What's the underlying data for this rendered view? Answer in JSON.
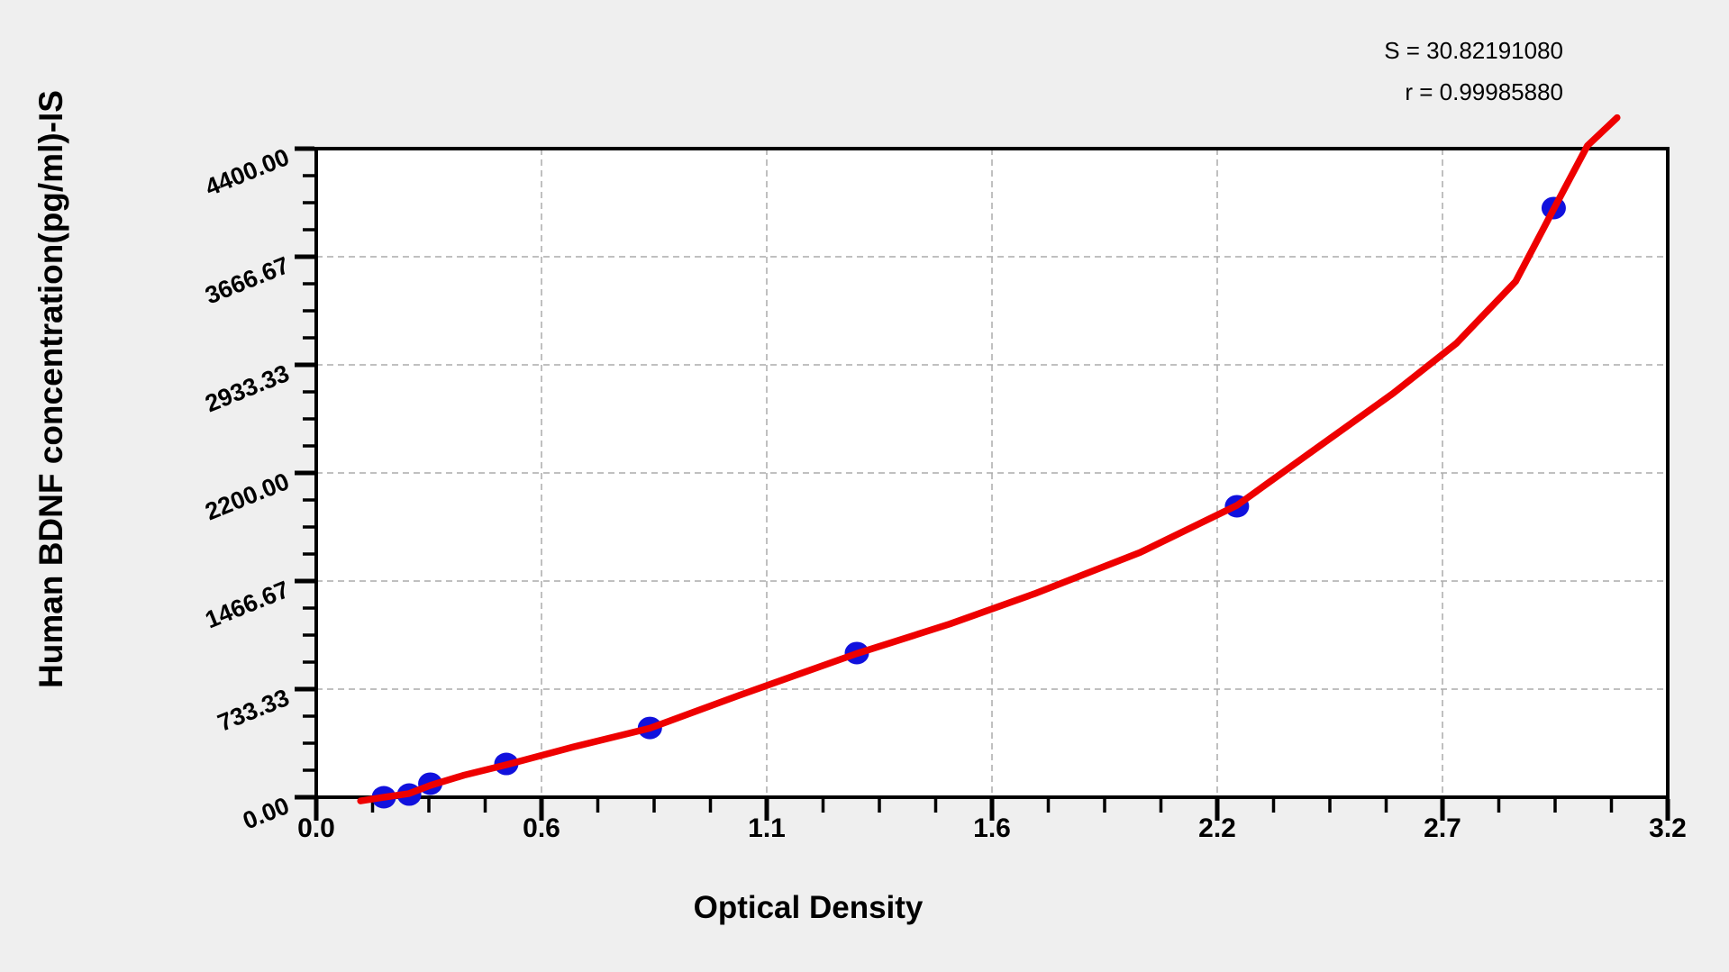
{
  "stats": {
    "s_label": "S = 30.82191080",
    "r_label": "r = 0.99985880"
  },
  "chart_data": {
    "type": "scatter",
    "title": "",
    "xlabel": "Optical Density",
    "ylabel": "Human BDNF concentration(pg/ml)-IS",
    "xlim": [
      0,
      3.2
    ],
    "ylim": [
      0,
      4400
    ],
    "x_tick_labels": [
      "0.0",
      "0.6",
      "1.1",
      "1.6",
      "2.2",
      "2.7",
      "3.2"
    ],
    "y_tick_labels": [
      "0.00",
      "733.33",
      "1466.67",
      "2200.00",
      "2933.33",
      "3666.67",
      "4400.00"
    ],
    "minor_ticks_per_interval": 3,
    "grid": "dashed-major",
    "legend": "none",
    "S": 30.8219108,
    "r": 0.9998588,
    "colors": {
      "point": "#1111dd",
      "curve": "#ee0000",
      "grid": "#ababab",
      "frame": "#000000",
      "plot_bg": "#ffffff",
      "page_bg": "#efefef"
    },
    "series": [
      {
        "name": "standard-points",
        "type": "scatter",
        "color": "#1111dd",
        "points": [
          [
            0.16,
            0
          ],
          [
            0.22,
            18
          ],
          [
            0.27,
            92
          ],
          [
            0.45,
            226
          ],
          [
            0.79,
            470
          ],
          [
            1.28,
            978
          ],
          [
            2.18,
            1974
          ],
          [
            2.93,
            3997
          ]
        ]
      },
      {
        "name": "fit-curve",
        "type": "line",
        "color": "#ee0000",
        "points": [
          [
            0.105,
            -25
          ],
          [
            0.16,
            0
          ],
          [
            0.22,
            25
          ],
          [
            0.27,
            80
          ],
          [
            0.35,
            150
          ],
          [
            0.45,
            220
          ],
          [
            0.6,
            335
          ],
          [
            0.79,
            468
          ],
          [
            1.0,
            690
          ],
          [
            1.28,
            975
          ],
          [
            1.5,
            1175
          ],
          [
            1.7,
            1380
          ],
          [
            1.95,
            1660
          ],
          [
            2.18,
            1980
          ],
          [
            2.35,
            2330
          ],
          [
            2.55,
            2740
          ],
          [
            2.7,
            3080
          ],
          [
            2.84,
            3500
          ],
          [
            2.93,
            3990
          ],
          [
            3.01,
            4420
          ],
          [
            3.08,
            4610
          ]
        ]
      }
    ]
  }
}
